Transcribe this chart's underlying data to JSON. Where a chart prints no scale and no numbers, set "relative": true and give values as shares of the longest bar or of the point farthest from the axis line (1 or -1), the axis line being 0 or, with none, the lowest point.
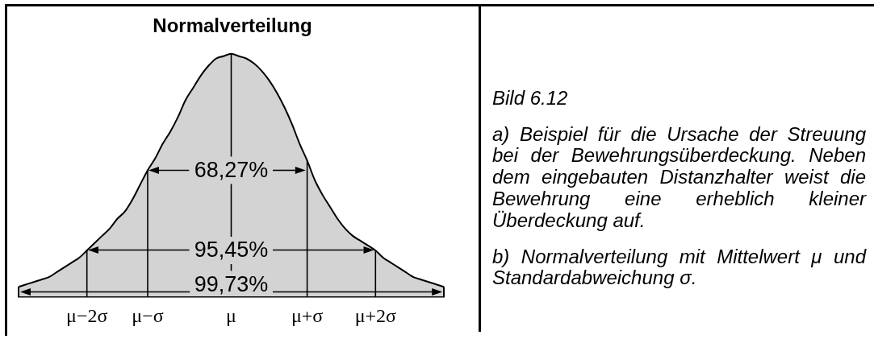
{
  "chart_data": {
    "type": "area",
    "title": "Normalverteilung",
    "relative": true,
    "color": "#d3d3d3",
    "categories": [
      null,
      null,
      null,
      null,
      null,
      null,
      null,
      null,
      null,
      "μ−2σ",
      null,
      null,
      null,
      null,
      null,
      null,
      null,
      "μ−σ",
      null,
      null,
      null,
      null,
      null,
      null,
      null,
      null,
      null,
      null,
      "μ",
      null,
      null,
      null,
      null,
      null,
      null,
      null,
      null,
      null,
      "μ+σ",
      null,
      null,
      null,
      null,
      null,
      null,
      null,
      null,
      "μ+2σ",
      null,
      null,
      null,
      null,
      null,
      null,
      null,
      null,
      null
    ],
    "values": [
      0.04,
      0.05,
      0.06,
      0.07,
      0.08,
      0.1,
      0.12,
      0.14,
      0.16,
      0.19,
      0.22,
      0.25,
      0.28,
      0.32,
      0.35,
      0.4,
      0.46,
      0.52,
      0.57,
      0.63,
      0.68,
      0.74,
      0.81,
      0.86,
      0.91,
      0.95,
      0.98,
      0.99,
      1,
      0.99,
      0.98,
      0.96,
      0.93,
      0.89,
      0.84,
      0.78,
      0.71,
      0.63,
      0.56,
      0.48,
      0.42,
      0.37,
      0.32,
      0.28,
      0.25,
      0.23,
      0.21,
      0.19,
      0.16,
      0.14,
      0.12,
      0.1,
      0.08,
      0.07,
      0.06,
      0.05,
      0.04
    ],
    "ref_lines": [
      {
        "axis": "x",
        "value": "μ−2σ"
      },
      {
        "axis": "x",
        "value": "μ−σ"
      },
      {
        "axis": "x",
        "value": "μ"
      },
      {
        "axis": "x",
        "value": "μ+σ"
      },
      {
        "axis": "x",
        "value": "μ+2σ"
      }
    ],
    "annotations": [
      "68,27%",
      "95,45%",
      "99,73%",
      "Bild 6.12",
      "a) Beispiel für die Ursache der Streuung bei der Bewehrungsüberdeckung. Neben dem eingebauten Distanzhalter weist die Bewehrung eine erheblich kleiner Überdeckung auf.",
      "b) Normalverteilung mit Mittelwert μ und Standardabweichung σ."
    ]
  }
}
